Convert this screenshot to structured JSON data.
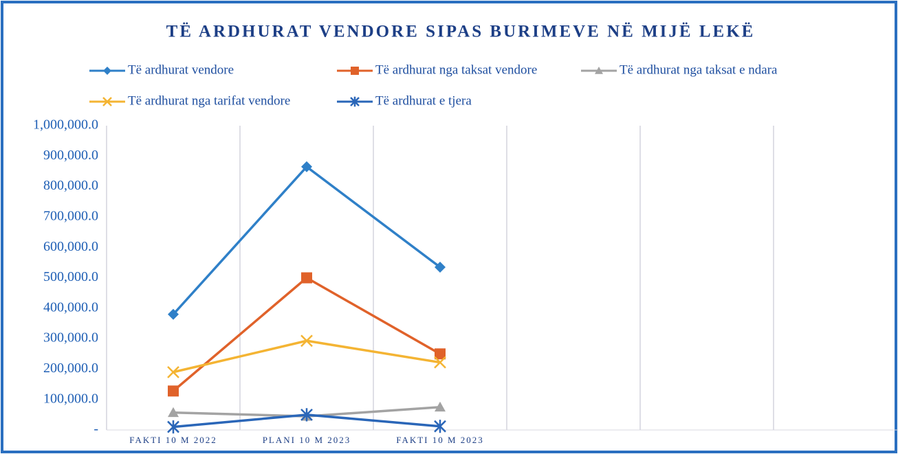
{
  "chart_data": {
    "type": "line",
    "title": "TË ARDHURAT VENDORE SIPAS BURIMEVE NË MIJË LEKË",
    "categories": [
      "FAKTI 10 M 2022",
      "PLANI 10 M 2023",
      "FAKTI 10 M 2023",
      null,
      null,
      null
    ],
    "series": [
      {
        "name": "Të ardhurat vendore",
        "color": "#2f80c8",
        "marker": "diamond",
        "values": [
          380000,
          865000,
          535000,
          null,
          null,
          null
        ]
      },
      {
        "name": "Të ardhurat nga taksat vendore",
        "color": "#e0622a",
        "marker": "square",
        "values": [
          128000,
          500000,
          250000,
          null,
          null,
          null
        ]
      },
      {
        "name": "Të ardhurat nga taksat e ndara",
        "color": "#a3a3a3",
        "marker": "triangle",
        "values": [
          57000,
          45000,
          75000,
          null,
          null,
          null
        ]
      },
      {
        "name": "Të ardhurat nga tarifat vendore",
        "color": "#f4b433",
        "marker": "x",
        "values": [
          190000,
          293000,
          222000,
          null,
          null,
          null
        ]
      },
      {
        "name": "Të ardhurat e tjera",
        "color": "#2a66b8",
        "marker": "star",
        "values": [
          10000,
          50000,
          12000,
          null,
          null,
          null
        ]
      }
    ],
    "ylim": [
      0,
      1000000
    ],
    "yticks": [
      {
        "value": 0,
        "label": "-"
      },
      {
        "value": 100000,
        "label": "100,000.0"
      },
      {
        "value": 200000,
        "label": "200,000.0"
      },
      {
        "value": 300000,
        "label": "300,000.0"
      },
      {
        "value": 400000,
        "label": "400,000.0"
      },
      {
        "value": 500000,
        "label": "500,000.0"
      },
      {
        "value": 600000,
        "label": "600,000.0"
      },
      {
        "value": 700000,
        "label": "700,000.0"
      },
      {
        "value": 800000,
        "label": "800,000.0"
      },
      {
        "value": 900000,
        "label": "900,000.0"
      },
      {
        "value": 1000000,
        "label": "1,000,000.0"
      }
    ],
    "grid": "vertical",
    "legend": "top"
  }
}
